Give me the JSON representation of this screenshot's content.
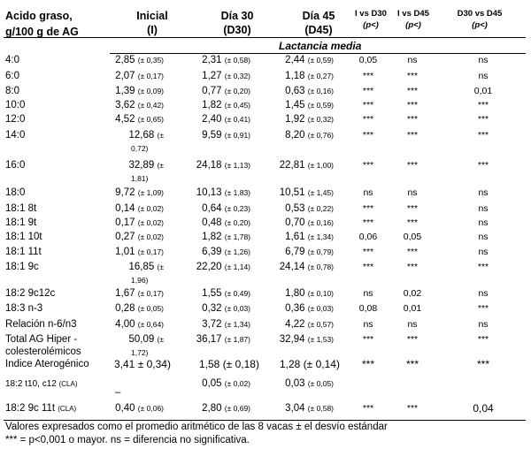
{
  "header": {
    "col_acid_line1": "Acido graso,",
    "col_acid_line2": "g/100 g de AG",
    "col_initial_line1": "Inicial",
    "col_initial_line2": "(I)",
    "col_d30_line1": "Día 30",
    "col_d30_line2": "(D30)",
    "col_d45_line1": "Día 45",
    "col_d45_line2": "(D45)",
    "col_i_d30_line1": "I vs D30",
    "col_i_d30_line2": "(p<)",
    "col_i_d45_line1": "I vs D45",
    "col_i_d45_line2": "(p<)",
    "col_d30_d45_line1": "D30 vs D45",
    "col_d30_d45_line2": "(p<)"
  },
  "subheader": "Lactancia media",
  "rows": [
    {
      "name": "4:0",
      "name_suffix": "",
      "initial_val": "2,85",
      "initial_sd": "(± 0,35)",
      "d30_val": "2,31",
      "d30_sd": "(± 0,58)",
      "d45_val": "2,44",
      "d45_sd": "(± 0,59)",
      "p1": "0,05",
      "p2": "ns",
      "p3": "ns"
    },
    {
      "name": "6:0",
      "name_suffix": "",
      "initial_val": "2,07",
      "initial_sd": "(± 0,17)",
      "d30_val": "1,27",
      "d30_sd": "(± 0,32)",
      "d45_val": "1,18",
      "d45_sd": "(± 0,27)",
      "p1": "***",
      "p2": "***",
      "p3": "ns"
    },
    {
      "name": "8:0",
      "name_suffix": "",
      "initial_val": "1,39",
      "initial_sd": "(± 0,09)",
      "d30_val": "0,77",
      "d30_sd": "(± 0,20)",
      "d45_val": "0,63",
      "d45_sd": "(± 0,16)",
      "p1": "***",
      "p2": "***",
      "p3": "0,01"
    },
    {
      "name": "10:0",
      "name_suffix": "",
      "initial_val": "3,62",
      "initial_sd": "(± 0,42)",
      "d30_val": "1,82",
      "d30_sd": "(± 0,45)",
      "d45_val": "1,45",
      "d45_sd": "(± 0,59)",
      "p1": "***",
      "p2": "***",
      "p3": "***"
    },
    {
      "name": "12:0",
      "name_suffix": "",
      "initial_val": "4,52",
      "initial_sd": "(± 0,65)",
      "d30_val": "2,40",
      "d30_sd": "(± 0,41)",
      "d45_val": "1,92",
      "d45_sd": "(± 0,32)",
      "p1": "***",
      "p2": "***",
      "p3": "***"
    },
    {
      "name": "14:0",
      "name_suffix": "",
      "initial_val": "12,68",
      "initial_sd_a": "(±",
      "initial_sd_b": "0,72)",
      "d30_val": "9,59",
      "d30_sd": "(± 0,91)",
      "d45_val": "8,20",
      "d45_sd": "(± 0,76)",
      "p1": "***",
      "p2": "***",
      "p3": "***"
    },
    {
      "name": "16:0",
      "name_suffix": "",
      "initial_val": "32,89",
      "initial_sd_a": "(±",
      "initial_sd_b": "1,81)",
      "d30_val": "24,18",
      "d30_sd": "(± 1,13)",
      "d45_val": "22,81",
      "d45_sd": "(± 1,00)",
      "p1": "***",
      "p2": "***",
      "p3": "***"
    },
    {
      "name": "18:0",
      "name_suffix": "",
      "initial_val": "9,72",
      "initial_sd": "(± 1,09)",
      "d30_val": "10,13",
      "d30_sd": "(± 1,83)",
      "d45_val": "10,51",
      "d45_sd": "(± 1,45)",
      "p1": "ns",
      "p2": "ns",
      "p3": "ns"
    },
    {
      "name": "18:1 8t",
      "name_suffix": "",
      "initial_val": "0,14",
      "initial_sd": "(± 0,02)",
      "d30_val": "0,64",
      "d30_sd": "(± 0,23)",
      "d45_val": "0,53",
      "d45_sd": "(± 0,22)",
      "p1": "***",
      "p2": "***",
      "p3": "ns"
    },
    {
      "name": "18:1 9t",
      "name_suffix": "",
      "initial_val": "0,17",
      "initial_sd": "(± 0,02)",
      "d30_val": "0,48",
      "d30_sd": "(± 0,20)",
      "d45_val": "0,70",
      "d45_sd": "(± 0,16)",
      "p1": "***",
      "p2": "***",
      "p3": "ns"
    },
    {
      "name": "18:1 10t",
      "name_suffix": "",
      "initial_val": "0,27",
      "initial_sd": "(± 0,02)",
      "d30_val": "1,82",
      "d30_sd": "(± 1,78)",
      "d45_val": "1,61",
      "d45_sd": "(± 1,34)",
      "p1": "0,06",
      "p2": "0,05",
      "p3": "ns"
    },
    {
      "name": "18:1 11t",
      "name_suffix": "",
      "initial_val": "1,01",
      "initial_sd": "(± 0,17)",
      "d30_val": "6,39",
      "d30_sd": "(± 1,26)",
      "d45_val": "6,79",
      "d45_sd": "(± 0,79)",
      "p1": "***",
      "p2": "***",
      "p3": "ns"
    },
    {
      "name": "18:1 9c",
      "name_suffix": "",
      "initial_val": "16,85",
      "initial_sd_a": "(±",
      "initial_sd_b": "1,96)",
      "d30_val": "22,20",
      "d30_sd": "(± 1,14)",
      "d45_val": "24,14",
      "d45_sd": "(± 0,78)",
      "p1": "***",
      "p2": "***",
      "p3": "***"
    },
    {
      "name": "18:2 9c12c",
      "name_suffix": "",
      "initial_val": "1,67",
      "initial_sd": "(± 0,17)",
      "d30_val": "1,55",
      "d30_sd": "(± 0,49)",
      "d45_val": "1,80",
      "d45_sd": "(± 0,10)",
      "p1": "ns",
      "p2": "0,02",
      "p3": "ns"
    },
    {
      "name": "18:3 n-3",
      "name_suffix": "",
      "initial_val": "0,28",
      "initial_sd": "(± 0,05)",
      "d30_val": "0,32",
      "d30_sd": "(± 0,03)",
      "d45_val": "0,36",
      "d45_sd": "(± 0,03)",
      "p1": "0,08",
      "p2": "0,01",
      "p3": "***"
    },
    {
      "name": "Relación n-6/n3",
      "name_suffix": "",
      "initial_val": "4,00",
      "initial_sd": "(± 0,64)",
      "d30_val": "3,72",
      "d30_sd": "(± 1,34)",
      "d45_val": "4,22",
      "d45_sd": "(± 0,57)",
      "p1": "ns",
      "p2": "ns",
      "p3": "ns"
    },
    {
      "name_a": "Total AG Hiper -",
      "name_b": "colesterolémicos",
      "initial_val": "50,09",
      "initial_sd_a": "(±",
      "initial_sd_b": "1,72)",
      "d30_val": "36,17",
      "d30_sd": "(± 1,87)",
      "d45_val": "32,94",
      "d45_sd": "(± 1,53)",
      "p1": "***",
      "p2": "***",
      "p3": "***"
    },
    {
      "name": "Indice Aterogénico",
      "initial_val": "3,41 ± 0,34)",
      "d30_val": "1,58 (± 0,18)",
      "d45_val": "1,28 (± 0,14)",
      "p1": "***",
      "p2": "***",
      "p3": "***"
    },
    {
      "name": "18:2 t10, c12",
      "name_suffix": "(CLA)",
      "initial_val": "–",
      "d30_val": "0,05",
      "d30_sd": "(± 0,02)",
      "d45_val": "0,03",
      "d45_sd": "(± 0,05)",
      "p1": "",
      "p2": "",
      "p3": ""
    },
    {
      "name": "18:2 9c 11t",
      "name_suffix": "(CLA)",
      "initial_val": "0,40",
      "initial_sd": "(± 0,06)",
      "d30_val": "2,80",
      "d30_sd": "(± 0,69)",
      "d45_val": "3,04",
      "d45_sd": "(± 0,58)",
      "p1": "***",
      "p2": "***",
      "p3": "0,04"
    }
  ],
  "footnotes": {
    "line1": "Valores expresados como el promedio aritmético de las 8 vacas ± el desvío estándar",
    "line2": "*** = p<0,001 o mayor. ns = diferencia no significativa."
  }
}
